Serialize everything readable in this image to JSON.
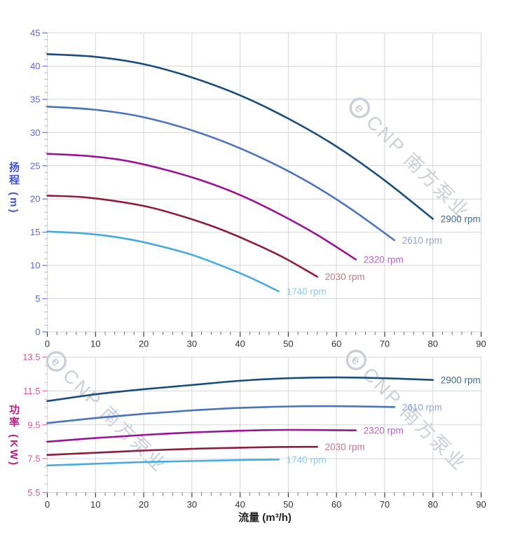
{
  "watermark": {
    "logo_letter": "e",
    "text": "CNP 南方泵业",
    "color": "#cad0da"
  },
  "palette": {
    "grid": "#d6d6d6",
    "x_tick_label": "#333333",
    "head_axis": "#4253d6",
    "head_tick_label": "#5a64e0",
    "power_axis": "#bf1d8a",
    "power_tick_label": "#e0519f"
  },
  "chart_data": [
    {
      "type": "line",
      "key": "head",
      "ylabel": "扬程 (m)",
      "xlabel": "",
      "xlim": [
        0,
        90
      ],
      "ylim": [
        0,
        45
      ],
      "x_ticks": [
        0,
        10,
        20,
        30,
        40,
        50,
        60,
        70,
        80,
        90
      ],
      "y_ticks": [
        0,
        5,
        10,
        15,
        20,
        25,
        30,
        35,
        40,
        45
      ],
      "x_minor_step": 2,
      "y_minor_step": 1,
      "grid": true,
      "tick_label_color": "#5a64e0",
      "series": [
        {
          "name": "2900 rpm",
          "color": "#1a4e7e",
          "label_color": "#47698f",
          "points": [
            [
              0,
              41.8
            ],
            [
              10,
              41.4
            ],
            [
              20,
              40.3
            ],
            [
              30,
              38.3
            ],
            [
              40,
              35.6
            ],
            [
              50,
              32.1
            ],
            [
              60,
              27.9
            ],
            [
              70,
              22.8
            ],
            [
              80,
              17.0
            ]
          ]
        },
        {
          "name": "2610 rpm",
          "color": "#4a74bd",
          "label_color": "#8ea7da",
          "points": [
            [
              0,
              33.9
            ],
            [
              9,
              33.5
            ],
            [
              18,
              32.6
            ],
            [
              27,
              31.0
            ],
            [
              36,
              28.8
            ],
            [
              45,
              26.0
            ],
            [
              54,
              22.6
            ],
            [
              63,
              18.5
            ],
            [
              72,
              13.8
            ]
          ]
        },
        {
          "name": "2320 rpm",
          "color": "#9b1297",
          "label_color": "#b368c5",
          "points": [
            [
              0,
              26.8
            ],
            [
              8,
              26.5
            ],
            [
              16,
              25.8
            ],
            [
              24,
              24.5
            ],
            [
              32,
              22.8
            ],
            [
              40,
              20.6
            ],
            [
              48,
              17.8
            ],
            [
              56,
              14.6
            ],
            [
              64,
              10.9
            ]
          ]
        },
        {
          "name": "2030 rpm",
          "color": "#8e1e3c",
          "label_color": "#c3798a",
          "points": [
            [
              0,
              20.5
            ],
            [
              7,
              20.3
            ],
            [
              14,
              19.7
            ],
            [
              21,
              18.8
            ],
            [
              28,
              17.4
            ],
            [
              35,
              15.7
            ],
            [
              42,
              13.6
            ],
            [
              49,
              11.2
            ],
            [
              56,
              8.3
            ]
          ]
        },
        {
          "name": "1740 rpm",
          "color": "#47abe3",
          "label_color": "#8fcaec",
          "points": [
            [
              0,
              15.1
            ],
            [
              6,
              14.9
            ],
            [
              12,
              14.5
            ],
            [
              18,
              13.8
            ],
            [
              24,
              12.8
            ],
            [
              30,
              11.6
            ],
            [
              36,
              10.0
            ],
            [
              42,
              8.2
            ],
            [
              48,
              6.1
            ]
          ]
        }
      ]
    },
    {
      "type": "line",
      "key": "power",
      "ylabel": "功率 (KW)",
      "xlabel": "流量 (m³/h)",
      "xlim": [
        0,
        90
      ],
      "ylim": [
        5.5,
        13.5
      ],
      "x_ticks": [
        0,
        10,
        20,
        30,
        40,
        50,
        60,
        70,
        80,
        90
      ],
      "y_ticks": [
        5.5,
        7.5,
        9.5,
        11.5,
        13.5
      ],
      "x_minor_step": 2,
      "y_minor_step": 0.5,
      "grid": true,
      "tick_label_color": "#e0519f",
      "series": [
        {
          "name": "2900 rpm",
          "color": "#1a4e7e",
          "label_color": "#47698f",
          "points": [
            [
              0,
              10.9
            ],
            [
              10,
              11.3
            ],
            [
              20,
              11.6
            ],
            [
              30,
              11.85
            ],
            [
              40,
              12.1
            ],
            [
              50,
              12.25
            ],
            [
              60,
              12.3
            ],
            [
              70,
              12.25
            ],
            [
              80,
              12.15
            ]
          ]
        },
        {
          "name": "2610 rpm",
          "color": "#4a74bd",
          "label_color": "#8ea7da",
          "points": [
            [
              0,
              9.6
            ],
            [
              10,
              9.9
            ],
            [
              20,
              10.15
            ],
            [
              30,
              10.35
            ],
            [
              40,
              10.5
            ],
            [
              50,
              10.58
            ],
            [
              60,
              10.6
            ],
            [
              72,
              10.55
            ]
          ]
        },
        {
          "name": "2320 rpm",
          "color": "#9b1297",
          "label_color": "#b368c5",
          "points": [
            [
              0,
              8.5
            ],
            [
              10,
              8.72
            ],
            [
              20,
              8.9
            ],
            [
              30,
              9.05
            ],
            [
              40,
              9.15
            ],
            [
              50,
              9.2
            ],
            [
              64,
              9.17
            ]
          ]
        },
        {
          "name": "2030 rpm",
          "color": "#8e1e3c",
          "label_color": "#c3798a",
          "points": [
            [
              0,
              7.72
            ],
            [
              10,
              7.85
            ],
            [
              20,
              7.98
            ],
            [
              30,
              8.08
            ],
            [
              40,
              8.15
            ],
            [
              48,
              8.19
            ],
            [
              56,
              8.2
            ]
          ]
        },
        {
          "name": "1740 rpm",
          "color": "#47abe3",
          "label_color": "#8fcaec",
          "points": [
            [
              0,
              7.1
            ],
            [
              10,
              7.2
            ],
            [
              20,
              7.3
            ],
            [
              30,
              7.36
            ],
            [
              40,
              7.42
            ],
            [
              48,
              7.45
            ]
          ]
        }
      ]
    }
  ]
}
